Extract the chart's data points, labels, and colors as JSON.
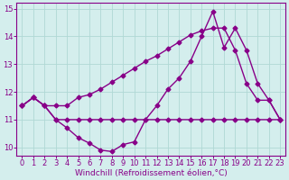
{
  "xlabel": "Windchill (Refroidissement éolien,°C)",
  "background_color": "#d4eeed",
  "grid_color": "#b0d8d5",
  "line_color": "#880088",
  "xlim": [
    -0.5,
    23.5
  ],
  "ylim": [
    9.7,
    15.2
  ],
  "yticks": [
    10,
    11,
    12,
    13,
    14,
    15
  ],
  "xticks": [
    0,
    1,
    2,
    3,
    4,
    5,
    6,
    7,
    8,
    9,
    10,
    11,
    12,
    13,
    14,
    15,
    16,
    17,
    18,
    19,
    20,
    21,
    22,
    23
  ],
  "line1_x": [
    0,
    1,
    2,
    3,
    4,
    5,
    6,
    7,
    8,
    9,
    10,
    11,
    12,
    13,
    14,
    15,
    16,
    17,
    18,
    19,
    20,
    21,
    22,
    23
  ],
  "line1_y": [
    11.5,
    11.8,
    11.5,
    11.0,
    11.0,
    11.0,
    11.0,
    11.0,
    11.0,
    11.0,
    11.0,
    11.0,
    11.0,
    11.0,
    11.0,
    11.0,
    11.0,
    11.0,
    11.0,
    11.0,
    11.0,
    11.0,
    11.0,
    11.0
  ],
  "line2_x": [
    0,
    1,
    2,
    3,
    4,
    5,
    6,
    7,
    8,
    9,
    10,
    11,
    12,
    13,
    14,
    15,
    16,
    17,
    18,
    19,
    20,
    21,
    22,
    23
  ],
  "line2_y": [
    11.5,
    11.8,
    11.5,
    11.0,
    10.7,
    10.35,
    10.15,
    9.9,
    9.85,
    10.1,
    10.2,
    11.0,
    11.5,
    12.1,
    12.5,
    13.1,
    14.0,
    14.9,
    13.6,
    14.3,
    13.5,
    12.3,
    11.7,
    11.0
  ],
  "line3_x": [
    0,
    1,
    2,
    3,
    4,
    5,
    6,
    7,
    8,
    9,
    10,
    11,
    12,
    13,
    14,
    15,
    16,
    17,
    18,
    19,
    20,
    21,
    22,
    23
  ],
  "line3_y": [
    11.5,
    11.8,
    11.5,
    11.5,
    11.5,
    11.8,
    11.9,
    12.1,
    12.35,
    12.6,
    12.85,
    13.1,
    13.3,
    13.55,
    13.8,
    14.05,
    14.2,
    14.3,
    14.3,
    13.5,
    12.3,
    11.7,
    11.7,
    11.0
  ],
  "marker": "D",
  "marker_size": 2.5,
  "linewidth": 1.0,
  "xlabel_fontsize": 6.5,
  "tick_fontsize": 6
}
